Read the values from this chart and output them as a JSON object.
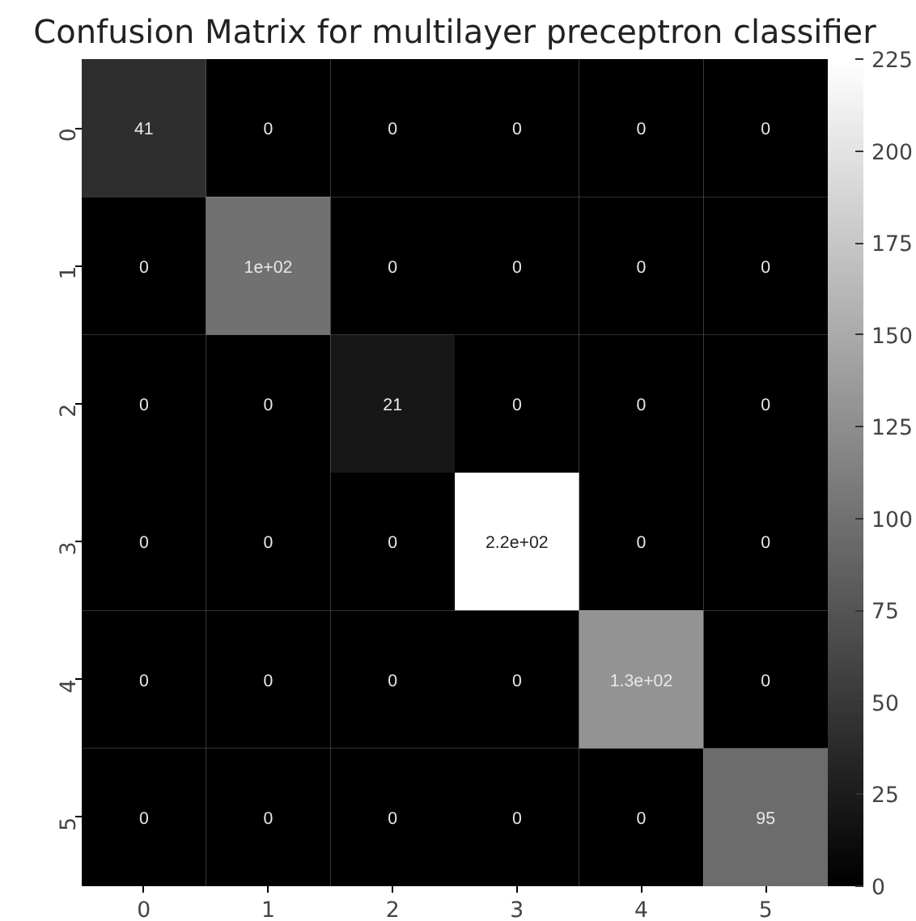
{
  "chart_data": {
    "type": "heatmap",
    "title": "Confusion Matrix for multilayer preceptron classifier",
    "categories": [
      "0",
      "1",
      "2",
      "3",
      "4",
      "5"
    ],
    "y_categories": [
      "0",
      "1",
      "2",
      "3",
      "4",
      "5"
    ],
    "cells": [
      [
        41,
        0,
        0,
        0,
        0,
        0
      ],
      [
        0,
        100,
        0,
        0,
        0,
        0
      ],
      [
        0,
        0,
        21,
        0,
        0,
        0
      ],
      [
        0,
        0,
        0,
        225,
        0,
        0
      ],
      [
        0,
        0,
        0,
        0,
        130,
        0
      ],
      [
        0,
        0,
        0,
        0,
        0,
        95
      ]
    ],
    "cell_labels": [
      [
        "41",
        "0",
        "0",
        "0",
        "0",
        "0"
      ],
      [
        "0",
        "1e+02",
        "0",
        "0",
        "0",
        "0"
      ],
      [
        "0",
        "0",
        "21",
        "0",
        "0",
        "0"
      ],
      [
        "0",
        "0",
        "0",
        "2.2e+02",
        "0",
        "0"
      ],
      [
        "0",
        "0",
        "0",
        "0",
        "1.3e+02",
        "0"
      ],
      [
        "0",
        "0",
        "0",
        "0",
        "0",
        "95"
      ]
    ],
    "clim": [
      0,
      225
    ],
    "cticks": [
      0,
      25,
      50,
      75,
      100,
      125,
      150,
      175,
      200,
      225
    ]
  }
}
